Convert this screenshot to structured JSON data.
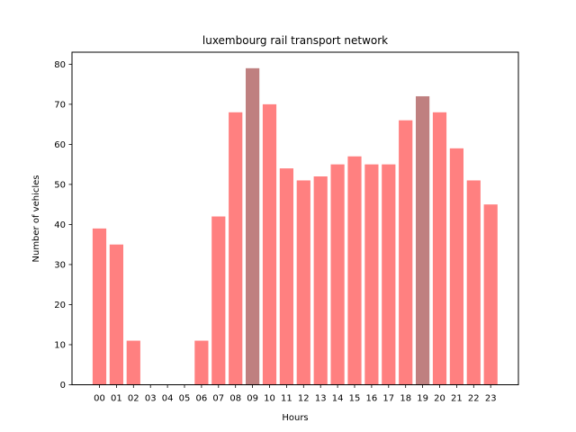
{
  "chart_data": {
    "type": "bar",
    "title": "luxembourg rail transport network",
    "xlabel": "Hours",
    "ylabel": "Number of vehicles",
    "categories": [
      "00",
      "01",
      "02",
      "03",
      "04",
      "05",
      "06",
      "07",
      "08",
      "09",
      "10",
      "11",
      "12",
      "13",
      "14",
      "15",
      "16",
      "17",
      "18",
      "19",
      "20",
      "21",
      "22",
      "23"
    ],
    "values": [
      39,
      35,
      11,
      0,
      0,
      0,
      11,
      42,
      68,
      79,
      70,
      54,
      51,
      52,
      55,
      57,
      55,
      55,
      66,
      72,
      68,
      59,
      51,
      45
    ],
    "highlighted": [
      "09",
      "19"
    ],
    "ylim": [
      0,
      83
    ],
    "yticks": [
      0,
      10,
      20,
      30,
      40,
      50,
      60,
      70,
      80
    ],
    "grid": false,
    "colors": {
      "bar": "#ff8080",
      "highlight": "#bf8080",
      "axis": "#000000"
    }
  }
}
